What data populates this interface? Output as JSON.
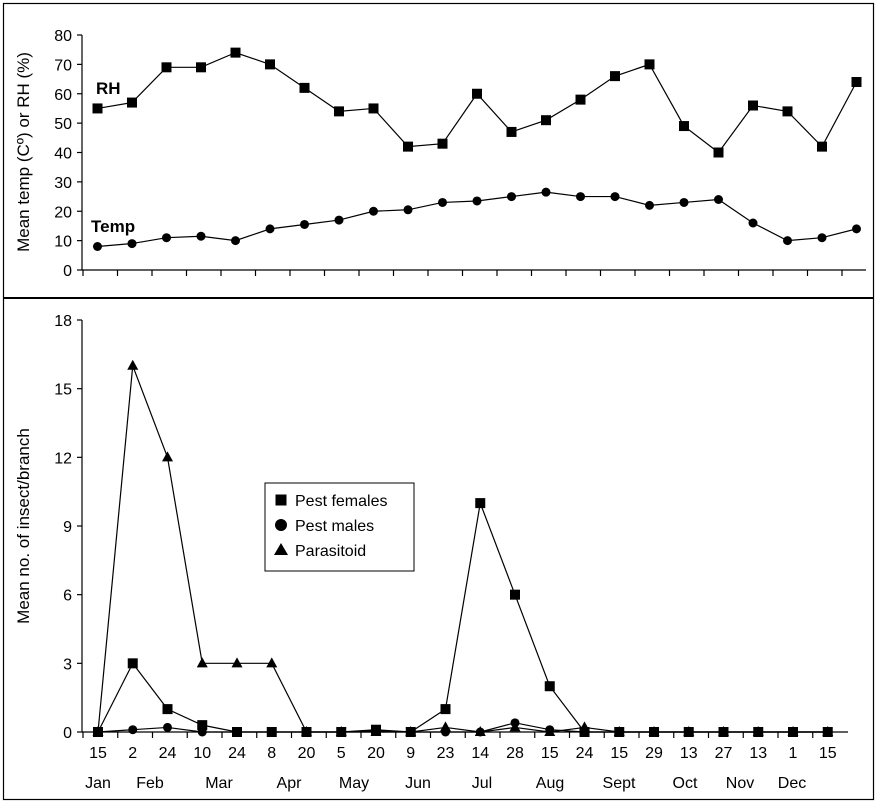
{
  "chart_data": [
    {
      "type": "line",
      "panel": "top",
      "ylabel": "Mean temp (Cº) or RH (%)",
      "ylim": [
        0,
        80
      ],
      "yticks": [
        0,
        10,
        20,
        30,
        40,
        50,
        60,
        70,
        80
      ],
      "n_categories": 23,
      "series": [
        {
          "name": "RH",
          "marker": "square",
          "values": [
            55,
            57,
            69,
            69,
            74,
            70,
            62,
            54,
            55,
            42,
            43,
            60,
            47,
            51,
            58,
            66,
            70,
            49,
            40,
            56,
            54,
            42,
            64
          ]
        },
        {
          "name": "Temp",
          "marker": "circle",
          "values": [
            8,
            9,
            11,
            11.5,
            10,
            14,
            15.5,
            17,
            20,
            20.5,
            23,
            23.5,
            25,
            26.5,
            25,
            25,
            22,
            23,
            24,
            16,
            10,
            11,
            14
          ]
        }
      ]
    },
    {
      "type": "line",
      "panel": "bottom",
      "ylabel": "Mean no. of insect/branch",
      "ylim": [
        0,
        18
      ],
      "yticks": [
        0,
        3,
        6,
        9,
        12,
        15,
        18
      ],
      "categories": [
        "15",
        "2",
        "24",
        "10",
        "24",
        "8",
        "20",
        "5",
        "20",
        "9",
        "23",
        "14",
        "28",
        "15",
        "24",
        "15",
        "29",
        "13",
        "27",
        "13",
        "1",
        "15"
      ],
      "months": [
        "Jan",
        "Feb",
        "Mar",
        "Apr",
        "May",
        "Jun",
        "Jul",
        "Aug",
        "Sept",
        "Oct",
        "Nov",
        "Dec"
      ],
      "legend": [
        "Pest females",
        "Pest males",
        "Parasitoid"
      ],
      "series": [
        {
          "name": "Pest females",
          "marker": "square",
          "values": [
            0,
            3,
            1,
            0.3,
            0,
            0,
            0,
            0,
            0.1,
            0,
            1,
            10,
            6,
            2,
            0,
            0,
            0,
            0,
            0,
            0,
            0,
            0
          ]
        },
        {
          "name": "Pest males",
          "marker": "circle",
          "values": [
            0,
            0.1,
            0.2,
            0,
            0,
            0,
            0,
            0,
            0.05,
            0,
            0,
            0,
            0.4,
            0.1,
            0,
            0,
            0,
            0,
            0,
            0,
            0,
            0
          ]
        },
        {
          "name": "Parasitoid",
          "marker": "triangle",
          "values": [
            0,
            16,
            12,
            3,
            3,
            3,
            0,
            0,
            0,
            0,
            0.2,
            0,
            0.2,
            0,
            0.2,
            0,
            0,
            0,
            0,
            0,
            0,
            0
          ]
        }
      ]
    }
  ]
}
